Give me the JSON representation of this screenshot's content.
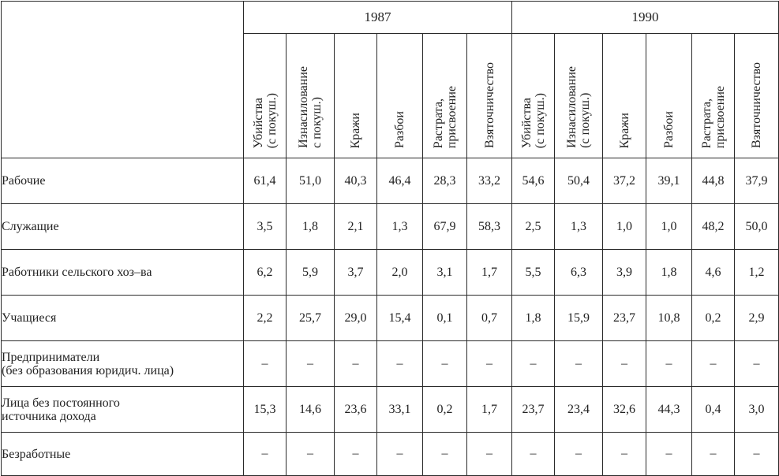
{
  "table": {
    "years": [
      "1987",
      "1990"
    ],
    "columns_1987": [
      [
        "Убийства",
        "(с покуш.)"
      ],
      [
        "Изнасилование",
        "с покуш.)"
      ],
      [
        "Кражи"
      ],
      [
        "Разбои"
      ],
      [
        "Растрата,",
        "присвоение"
      ],
      [
        "Взяточничество"
      ]
    ],
    "columns_1990": [
      [
        "Убийства",
        "(с покуш.)"
      ],
      [
        "Изнасилование",
        "(с покуш.)"
      ],
      [
        "Кражи"
      ],
      [
        "Разбои"
      ],
      [
        "Растрата,",
        "присвоение"
      ],
      [
        "Взяточничество"
      ]
    ],
    "rows": [
      {
        "label": [
          "Рабочие"
        ],
        "values": [
          "61,4",
          "51,0",
          "40,3",
          "46,4",
          "28,3",
          "33,2",
          "54,6",
          "50,4",
          "37,2",
          "39,1",
          "44,8",
          "37,9"
        ]
      },
      {
        "label": [
          "Служащие"
        ],
        "values": [
          "3,5",
          "1,8",
          "2,1",
          "1,3",
          "67,9",
          "58,3",
          "2,5",
          "1,3",
          "1,0",
          "1,0",
          "48,2",
          "50,0"
        ]
      },
      {
        "label": [
          "Работники сельского хоз–ва"
        ],
        "values": [
          "6,2",
          "5,9",
          "3,7",
          "2,0",
          "3,1",
          "1,7",
          "5,5",
          "6,3",
          "3,9",
          "1,8",
          "4,6",
          "1,2"
        ]
      },
      {
        "label": [
          "Учащиеся"
        ],
        "values": [
          "2,2",
          "25,7",
          "29,0",
          "15,4",
          "0,1",
          "0,7",
          "1,8",
          "15,9",
          "23,7",
          "10,8",
          "0,2",
          "2,9"
        ]
      },
      {
        "label": [
          "Предприниматели",
          "(без образования юридич. лица)"
        ],
        "values": [
          "–",
          "–",
          "–",
          "–",
          "–",
          "–",
          "–",
          "–",
          "–",
          "–",
          "–",
          "–"
        ]
      },
      {
        "label": [
          "Лица без постоянного",
          "источника дохода"
        ],
        "values": [
          "15,3",
          "14,6",
          "23,6",
          "33,1",
          "0,2",
          "1,7",
          "23,7",
          "23,4",
          "32,6",
          "44,3",
          "0,4",
          "3,0"
        ]
      },
      {
        "label": [
          "Безработные"
        ],
        "values": [
          "–",
          "–",
          "–",
          "–",
          "–",
          "–",
          "–",
          "–",
          "–",
          "–",
          "–",
          "–"
        ]
      }
    ]
  }
}
